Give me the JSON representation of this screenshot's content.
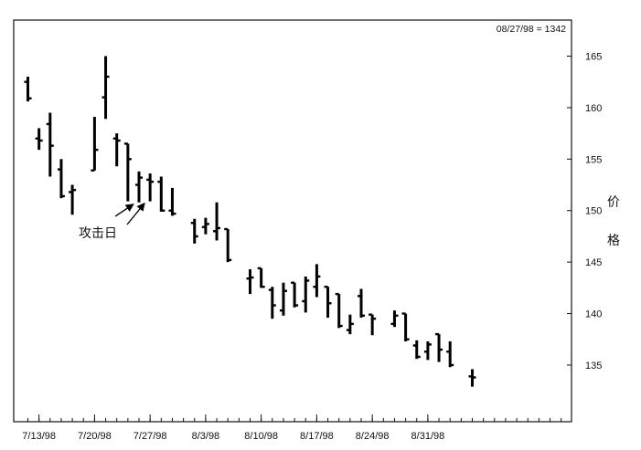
{
  "chart_data": {
    "type": "ohlc",
    "info_label": "08/27/98 = 1342",
    "ylabel": "价格",
    "ylim": [
      129.5,
      168.5
    ],
    "y_ticks": [
      135,
      140,
      145,
      150,
      155,
      160,
      165
    ],
    "x_tick_labels": [
      "7/13/98",
      "7/20/98",
      "7/27/98",
      "8/3/98",
      "8/10/98",
      "8/17/98",
      "8/24/98",
      "8/31/98"
    ],
    "x_ticks_per_label": 5,
    "bars": [
      {
        "high": 163.0,
        "low": 160.6,
        "open": 162.5,
        "close": 160.9
      },
      {
        "high": 158.0,
        "low": 155.9,
        "open": 157.0,
        "close": 156.8
      },
      {
        "high": 159.5,
        "low": 153.3,
        "open": 158.4,
        "close": 156.3
      },
      {
        "high": 155.0,
        "low": 151.2,
        "open": 154.0,
        "close": 151.4
      },
      {
        "high": 152.5,
        "low": 149.6,
        "open": 151.8,
        "close": 152.0
      },
      {
        "high": 159.1,
        "low": 153.9,
        "open": 153.9,
        "close": 155.9
      },
      {
        "high": 165.0,
        "low": 158.9,
        "open": 161.0,
        "close": 163.0
      },
      {
        "high": 157.5,
        "low": 154.3,
        "open": 157.0,
        "close": 156.8
      },
      {
        "high": 156.5,
        "low": 150.9,
        "open": 156.5,
        "close": 155.0
      },
      {
        "high": 153.8,
        "low": 150.8,
        "open": 152.5,
        "close": 153.2
      },
      {
        "high": 153.6,
        "low": 150.9,
        "open": 153.0,
        "close": 152.8
      },
      {
        "high": 153.3,
        "low": 149.9,
        "open": 152.8,
        "close": 150.0
      },
      {
        "high": 152.2,
        "low": 149.5,
        "open": 150.0,
        "close": 149.7
      },
      {
        "high": 149.2,
        "low": 146.8,
        "open": 148.8,
        "close": 147.5
      },
      {
        "high": 149.3,
        "low": 147.7,
        "open": 148.4,
        "close": 148.7
      },
      {
        "high": 150.8,
        "low": 147.1,
        "open": 148.0,
        "close": 148.3
      },
      {
        "high": 148.2,
        "low": 145.0,
        "open": 148.2,
        "close": 145.2
      },
      {
        "high": 144.3,
        "low": 141.9,
        "open": 143.4,
        "close": 143.5
      },
      {
        "high": 144.4,
        "low": 142.5,
        "open": 144.4,
        "close": 142.6
      },
      {
        "high": 142.6,
        "low": 139.5,
        "open": 142.3,
        "close": 140.8
      },
      {
        "high": 143.0,
        "low": 139.8,
        "open": 140.3,
        "close": 142.2
      },
      {
        "high": 143.0,
        "low": 140.6,
        "open": 143.0,
        "close": 140.8
      },
      {
        "high": 143.6,
        "low": 140.1,
        "open": 141.2,
        "close": 143.2
      },
      {
        "high": 144.8,
        "low": 141.6,
        "open": 142.6,
        "close": 143.6
      },
      {
        "high": 142.6,
        "low": 139.6,
        "open": 142.6,
        "close": 141.0
      },
      {
        "high": 141.9,
        "low": 138.6,
        "open": 141.9,
        "close": 138.8
      },
      {
        "high": 139.9,
        "low": 138.0,
        "open": 138.4,
        "close": 139.0
      },
      {
        "high": 142.4,
        "low": 139.6,
        "open": 141.7,
        "close": 139.8
      },
      {
        "high": 139.9,
        "low": 137.9,
        "open": 139.9,
        "close": 139.5
      },
      {
        "high": 140.3,
        "low": 138.7,
        "open": 139.0,
        "close": 139.8
      },
      {
        "high": 140.0,
        "low": 137.3,
        "open": 140.0,
        "close": 137.5
      },
      {
        "high": 137.4,
        "low": 135.6,
        "open": 136.9,
        "close": 135.8
      },
      {
        "high": 137.3,
        "low": 135.5,
        "open": 136.3,
        "close": 137.0
      },
      {
        "high": 138.0,
        "low": 135.3,
        "open": 138.0,
        "close": 136.5
      },
      {
        "high": 137.3,
        "low": 134.8,
        "open": 136.3,
        "close": 135.0
      },
      {
        "high": 134.6,
        "low": 132.9,
        "open": 133.9,
        "close": 133.8
      }
    ],
    "bar_sessions": [
      0,
      1,
      2,
      3,
      4,
      6,
      7,
      8,
      9,
      10,
      11,
      12,
      13,
      15,
      16,
      17,
      18,
      20,
      21,
      22,
      23,
      24,
      25,
      26,
      27,
      28,
      29,
      30,
      31,
      33,
      34,
      35,
      36,
      37,
      38,
      40
    ],
    "annotation": {
      "text": "攻击日",
      "targets": [
        9,
        10
      ]
    }
  }
}
